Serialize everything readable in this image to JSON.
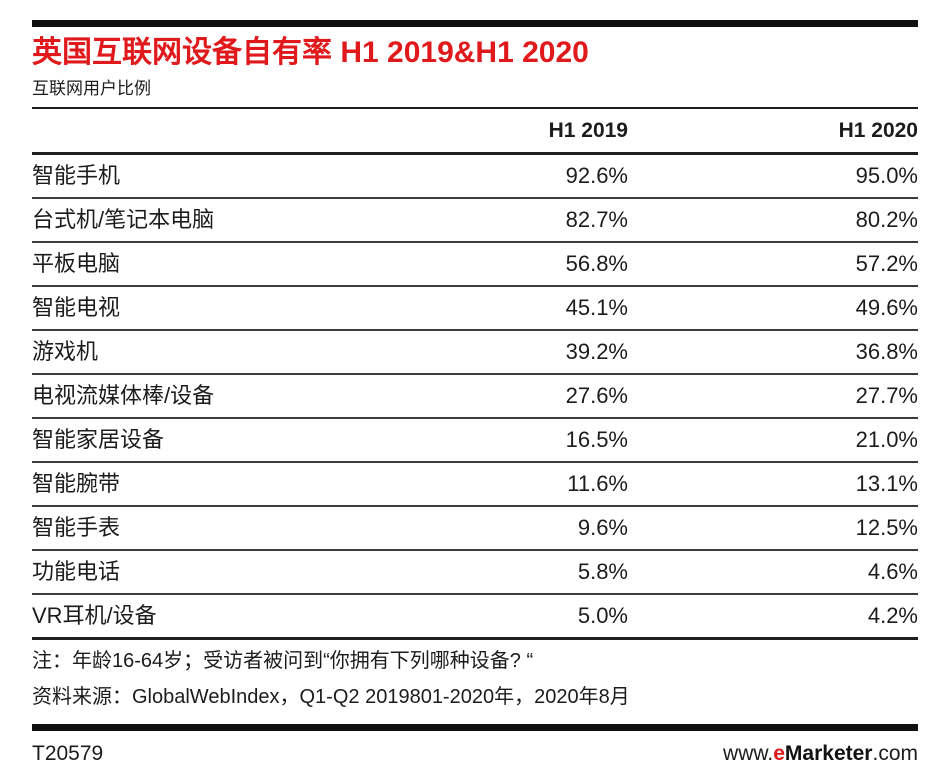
{
  "meta": {
    "accent_red": "#e0191c",
    "text_color": "#1c1c1c",
    "rule_color": "#111111"
  },
  "header": {
    "title": "英国互联网设备自有率 H1 2019&H1 2020",
    "subtitle": "互联网用户比例"
  },
  "chart_data": {
    "type": "table",
    "title": "英国互联网设备自有率 H1 2019&H1 2020",
    "subtitle": "互联网用户比例",
    "columns": [
      "",
      "H1 2019",
      "H1 2020"
    ],
    "unit": "% of internet users",
    "rows": [
      {
        "label": "智能手机",
        "values": [
          92.6,
          95.0
        ],
        "display": [
          "92.6%",
          "95.0%"
        ]
      },
      {
        "label": "台式机/笔记本电脑",
        "values": [
          82.7,
          80.2
        ],
        "display": [
          "82.7%",
          "80.2%"
        ]
      },
      {
        "label": "平板电脑",
        "values": [
          56.8,
          57.2
        ],
        "display": [
          "56.8%",
          "57.2%"
        ]
      },
      {
        "label": "智能电视",
        "values": [
          45.1,
          49.6
        ],
        "display": [
          "45.1%",
          "49.6%"
        ]
      },
      {
        "label": "游戏机",
        "values": [
          39.2,
          36.8
        ],
        "display": [
          "39.2%",
          "36.8%"
        ]
      },
      {
        "label": "电视流媒体棒/设备",
        "values": [
          27.6,
          27.7
        ],
        "display": [
          "27.6%",
          "27.7%"
        ]
      },
      {
        "label": "智能家居设备",
        "values": [
          16.5,
          21.0
        ],
        "display": [
          "16.5%",
          "21.0%"
        ]
      },
      {
        "label": "智能腕带",
        "values": [
          11.6,
          13.1
        ],
        "display": [
          "11.6%",
          "13.1%"
        ]
      },
      {
        "label": "智能手表",
        "values": [
          9.6,
          12.5
        ],
        "display": [
          "9.6%",
          "12.5%"
        ]
      },
      {
        "label": "功能电话",
        "values": [
          5.8,
          4.6
        ],
        "display": [
          "5.8%",
          "4.6%"
        ]
      },
      {
        "label": "VR耳机/设备",
        "values": [
          5.0,
          4.2
        ],
        "display": [
          "5.0%",
          "4.2%"
        ]
      }
    ]
  },
  "footnotes": {
    "note": "注：年龄16-64岁；受访者被问到“你拥有下列哪种设备? “",
    "source": "资料来源：GlobalWebIndex，Q1-Q2 2019801-2020年，2020年8月"
  },
  "footer": {
    "id": "T20579",
    "site_prefix": "www.",
    "site_e": "e",
    "site_name": "Marketer",
    "site_suffix": ".com"
  }
}
